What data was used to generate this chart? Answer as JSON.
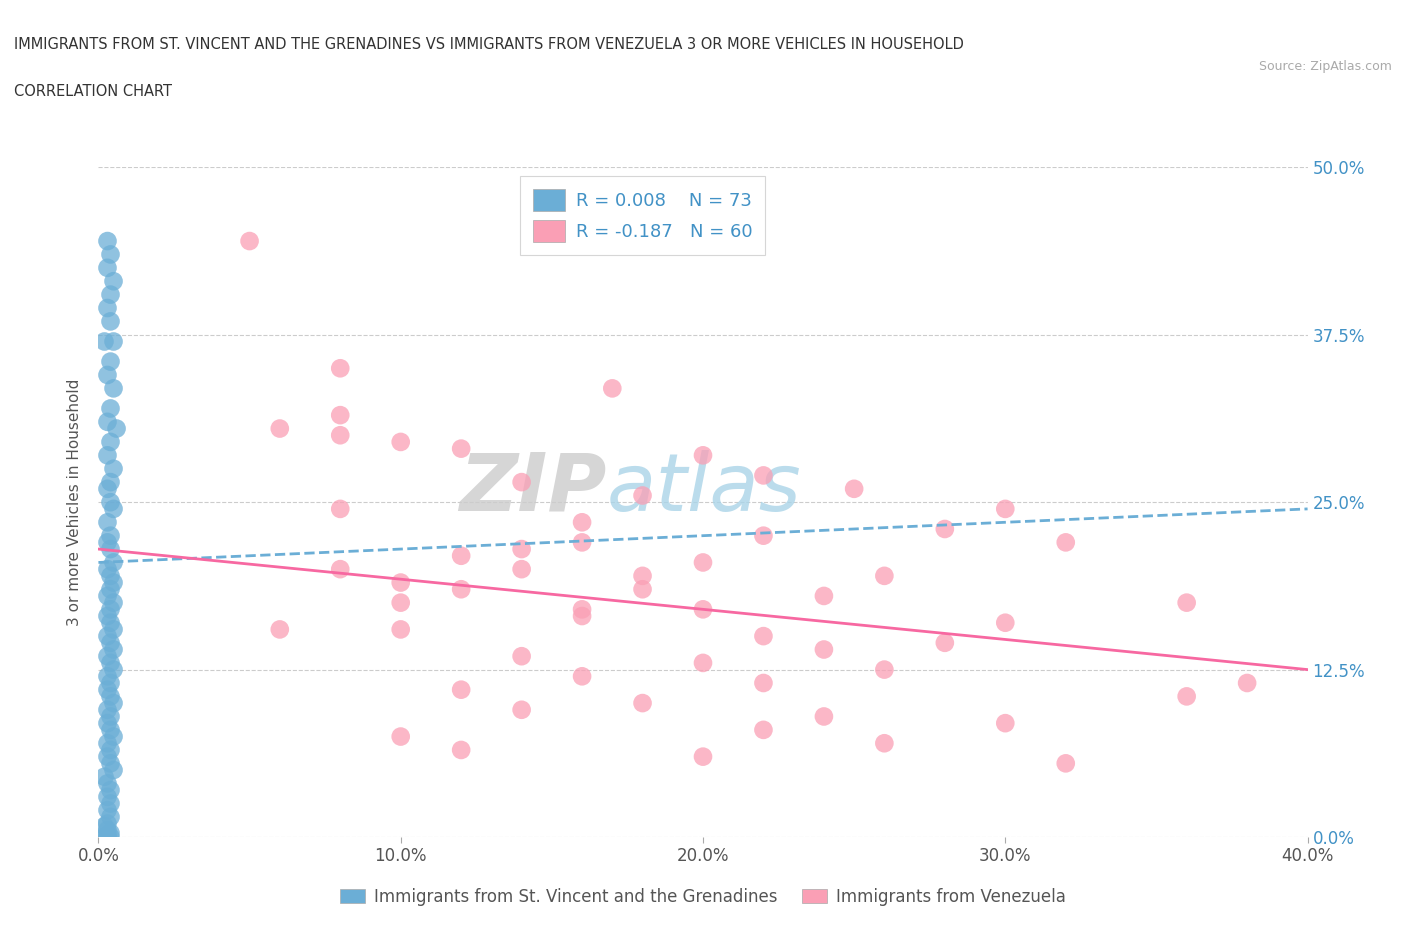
{
  "title_line1": "IMMIGRANTS FROM ST. VINCENT AND THE GRENADINES VS IMMIGRANTS FROM VENEZUELA 3 OR MORE VEHICLES IN HOUSEHOLD",
  "title_line2": "CORRELATION CHART",
  "source_text": "Source: ZipAtlas.com",
  "ylabel": "3 or more Vehicles in Household",
  "xlim": [
    0.0,
    0.4
  ],
  "ylim": [
    0.0,
    0.5
  ],
  "xtick_labels": [
    "0.0%",
    "10.0%",
    "20.0%",
    "30.0%",
    "40.0%"
  ],
  "xtick_vals": [
    0.0,
    0.1,
    0.2,
    0.3,
    0.4
  ],
  "ytick_labels": [
    "0.0%",
    "12.5%",
    "25.0%",
    "37.5%",
    "50.0%"
  ],
  "ytick_vals": [
    0.0,
    0.125,
    0.25,
    0.375,
    0.5
  ],
  "legend_r1": "R = 0.008",
  "legend_n1": "N = 73",
  "legend_r2": "R = -0.187",
  "legend_n2": "N = 60",
  "color_blue": "#6baed6",
  "color_pink": "#fa9fb5",
  "trendline_blue_color": "#6baed6",
  "trendline_pink_color": "#f768a1",
  "watermark_zip": "ZIP",
  "watermark_atlas": "atlas",
  "series1_name": "Immigrants from St. Vincent and the Grenadines",
  "series2_name": "Immigrants from Venezuela",
  "blue_x": [
    0.003,
    0.004,
    0.003,
    0.005,
    0.004,
    0.003,
    0.004,
    0.005,
    0.002,
    0.004,
    0.003,
    0.005,
    0.004,
    0.003,
    0.006,
    0.004,
    0.003,
    0.005,
    0.004,
    0.003,
    0.004,
    0.005,
    0.003,
    0.004,
    0.003,
    0.004,
    0.005,
    0.003,
    0.004,
    0.005,
    0.004,
    0.003,
    0.005,
    0.004,
    0.003,
    0.004,
    0.005,
    0.003,
    0.004,
    0.005,
    0.003,
    0.004,
    0.005,
    0.003,
    0.004,
    0.003,
    0.004,
    0.005,
    0.003,
    0.004,
    0.003,
    0.004,
    0.005,
    0.003,
    0.004,
    0.003,
    0.004,
    0.005,
    0.002,
    0.003,
    0.004,
    0.003,
    0.004,
    0.003,
    0.004,
    0.003,
    0.002,
    0.003,
    0.004,
    0.003,
    0.002,
    0.003,
    0.004
  ],
  "blue_y": [
    0.445,
    0.435,
    0.425,
    0.415,
    0.405,
    0.395,
    0.385,
    0.37,
    0.37,
    0.355,
    0.345,
    0.335,
    0.32,
    0.31,
    0.305,
    0.295,
    0.285,
    0.275,
    0.265,
    0.26,
    0.25,
    0.245,
    0.235,
    0.225,
    0.22,
    0.215,
    0.205,
    0.2,
    0.195,
    0.19,
    0.185,
    0.18,
    0.175,
    0.17,
    0.165,
    0.16,
    0.155,
    0.15,
    0.145,
    0.14,
    0.135,
    0.13,
    0.125,
    0.12,
    0.115,
    0.11,
    0.105,
    0.1,
    0.095,
    0.09,
    0.085,
    0.08,
    0.075,
    0.07,
    0.065,
    0.06,
    0.055,
    0.05,
    0.045,
    0.04,
    0.035,
    0.03,
    0.025,
    0.02,
    0.015,
    0.01,
    0.008,
    0.005,
    0.003,
    0.001,
    0.0,
    0.0,
    0.0
  ],
  "pink_x": [
    0.17,
    0.08,
    0.12,
    0.2,
    0.22,
    0.05,
    0.14,
    0.25,
    0.18,
    0.3,
    0.08,
    0.16,
    0.1,
    0.28,
    0.22,
    0.32,
    0.06,
    0.12,
    0.2,
    0.08,
    0.14,
    0.26,
    0.1,
    0.18,
    0.24,
    0.36,
    0.14,
    0.2,
    0.16,
    0.3,
    0.06,
    0.1,
    0.22,
    0.28,
    0.12,
    0.18,
    0.24,
    0.08,
    0.14,
    0.2,
    0.26,
    0.1,
    0.16,
    0.22,
    0.12,
    0.36,
    0.08,
    0.18,
    0.14,
    0.24,
    0.3,
    0.16,
    0.22,
    0.1,
    0.26,
    0.12,
    0.2,
    0.32,
    0.16,
    0.38
  ],
  "pink_y": [
    0.335,
    0.3,
    0.29,
    0.285,
    0.27,
    0.445,
    0.265,
    0.26,
    0.255,
    0.245,
    0.315,
    0.235,
    0.295,
    0.23,
    0.225,
    0.22,
    0.305,
    0.21,
    0.205,
    0.35,
    0.2,
    0.195,
    0.19,
    0.185,
    0.18,
    0.175,
    0.215,
    0.17,
    0.165,
    0.16,
    0.155,
    0.175,
    0.15,
    0.145,
    0.185,
    0.195,
    0.14,
    0.2,
    0.135,
    0.13,
    0.125,
    0.155,
    0.12,
    0.115,
    0.11,
    0.105,
    0.245,
    0.1,
    0.095,
    0.09,
    0.085,
    0.17,
    0.08,
    0.075,
    0.07,
    0.065,
    0.06,
    0.055,
    0.22,
    0.115
  ],
  "trendline_blue_x0": 0.0,
  "trendline_blue_y0": 0.205,
  "trendline_blue_x1": 0.4,
  "trendline_blue_y1": 0.245,
  "trendline_pink_x0": 0.0,
  "trendline_pink_y0": 0.215,
  "trendline_pink_x1": 0.4,
  "trendline_pink_y1": 0.125
}
